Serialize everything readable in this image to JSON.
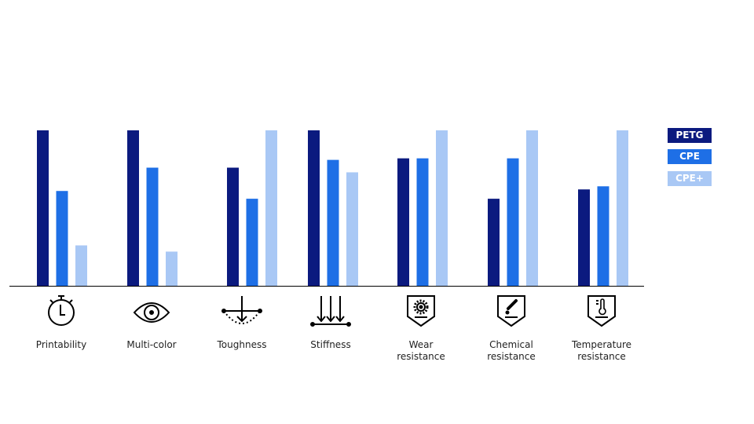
{
  "chart_data": {
    "type": "bar",
    "title": "",
    "xlabel": "",
    "ylabel": "",
    "ylim": [
      0,
      100
    ],
    "grid": false,
    "legend_position": "right",
    "categories": [
      "Printability",
      "Multi-color",
      "Toughness",
      "Stiffness",
      "Wear resistance",
      "Chemical resistance",
      "Temperature resistance"
    ],
    "category_lines": [
      [
        "Printability"
      ],
      [
        "Multi-color"
      ],
      [
        "Toughness"
      ],
      [
        "Stiffness"
      ],
      [
        "Wear",
        "resistance"
      ],
      [
        "Chemical",
        "resistance"
      ],
      [
        "Temperature",
        "resistance"
      ]
    ],
    "category_icons": [
      "stopwatch-icon",
      "eye-icon",
      "impact-icon",
      "downward-arrows-icon",
      "gear-shield-icon",
      "dropper-shield-icon",
      "thermometer-shield-icon"
    ],
    "series": [
      {
        "name": "PETG",
        "color": "#0b1a7f",
        "values": [
          100,
          100,
          76,
          100,
          82,
          56,
          62
        ]
      },
      {
        "name": "CPE",
        "color": "#1e6fe6",
        "values": [
          61,
          76,
          56,
          81,
          82,
          82,
          64
        ]
      },
      {
        "name": "CPE+",
        "color": "#a9c8f5",
        "values": [
          26,
          22,
          100,
          73,
          100,
          100,
          100
        ]
      }
    ]
  }
}
